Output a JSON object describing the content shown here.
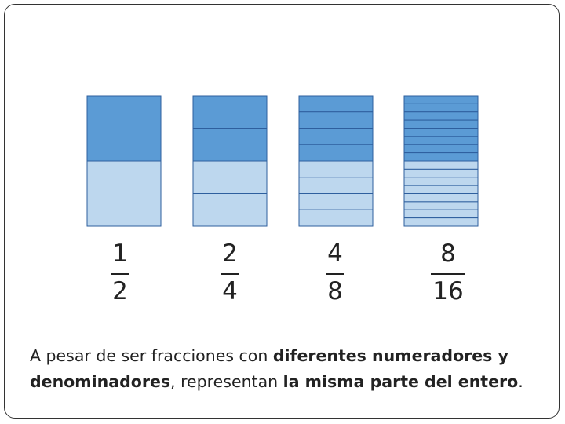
{
  "colors": {
    "filled": "#5b9bd5",
    "empty": "#bdd7ee",
    "line": "#2e5f9e",
    "text": "#222222"
  },
  "fractions": [
    {
      "numerator": "1",
      "denominator": "2",
      "parts": 2,
      "filled": 1
    },
    {
      "numerator": "2",
      "denominator": "4",
      "parts": 4,
      "filled": 2
    },
    {
      "numerator": "4",
      "denominator": "8",
      "parts": 8,
      "filled": 4
    },
    {
      "numerator": "8",
      "denominator": "16",
      "parts": 16,
      "filled": 8
    }
  ],
  "caption": {
    "part1": "A pesar de ser fracciones con ",
    "bold1": "diferentes numeradores y denominadores",
    "part2": ", representan ",
    "bold2": "la misma parte del entero",
    "part3": "."
  }
}
